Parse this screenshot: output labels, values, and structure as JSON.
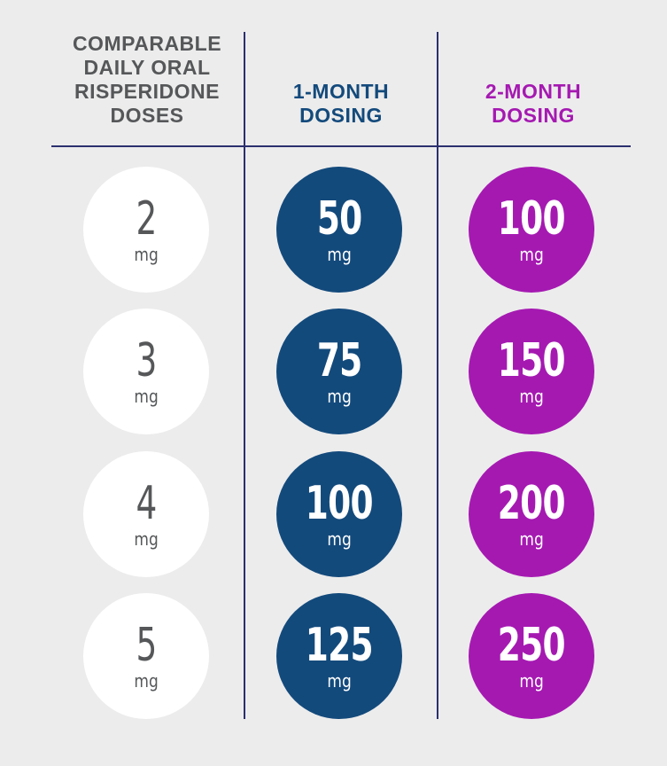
{
  "headers": {
    "oral": [
      "COMPARABLE",
      "DAILY ORAL",
      "RISPERIDONE",
      "DOSES"
    ],
    "one_month": [
      "1-MONTH",
      "DOSING"
    ],
    "two_month": [
      "2-MONTH",
      "DOSING"
    ]
  },
  "colors": {
    "background": "#ececec",
    "oral_text": "#555759",
    "one_month": "#134a7c",
    "two_month": "#a519b1",
    "rule": "#2b2f6e"
  },
  "rows": [
    {
      "oral": "2",
      "one_month": "50",
      "two_month": "100",
      "unit": "mg"
    },
    {
      "oral": "3",
      "one_month": "75",
      "two_month": "150",
      "unit": "mg"
    },
    {
      "oral": "4",
      "one_month": "100",
      "two_month": "200",
      "unit": "mg"
    },
    {
      "oral": "5",
      "one_month": "125",
      "two_month": "250",
      "unit": "mg"
    }
  ]
}
